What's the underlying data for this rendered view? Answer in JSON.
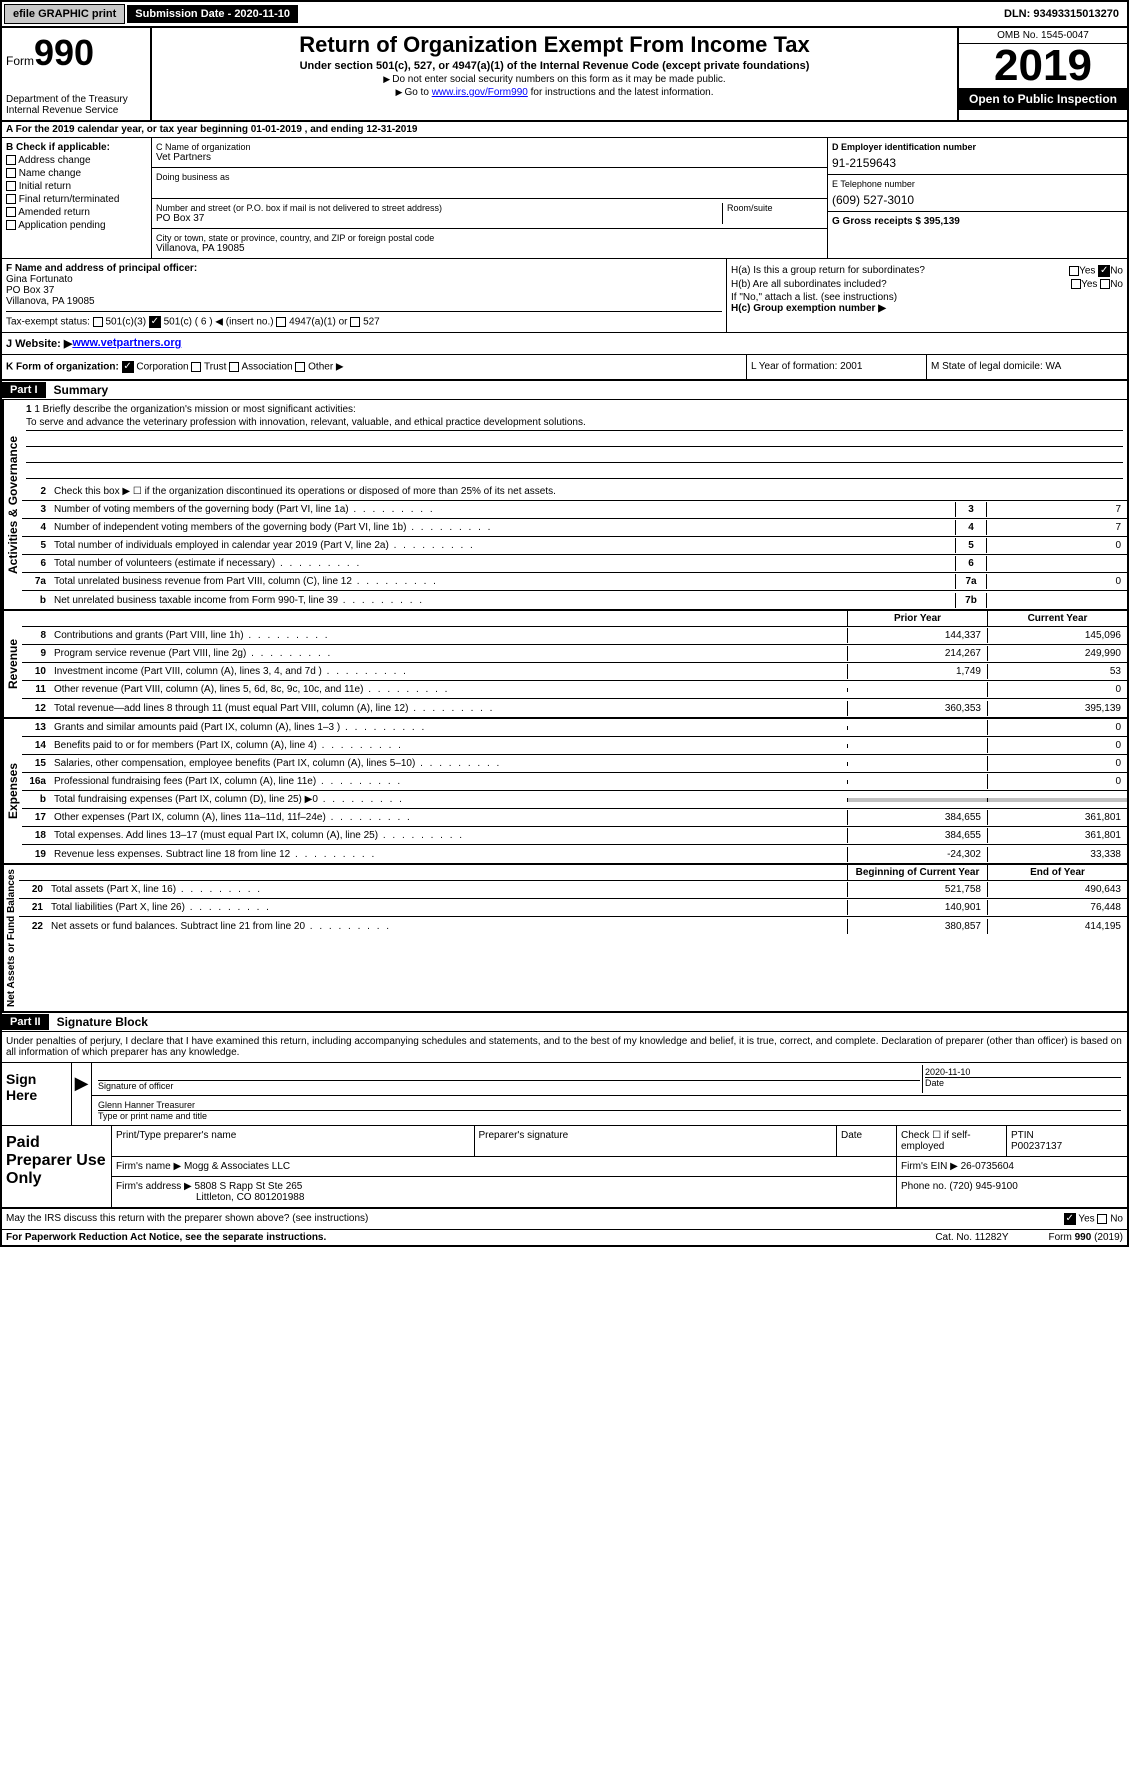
{
  "topbar": {
    "efile": "efile GRAPHIC print",
    "submission_label": "Submission Date - 2020-11-10",
    "dln": "DLN: 93493315013270"
  },
  "header": {
    "form_prefix": "Form",
    "form_num": "990",
    "dept": "Department of the Treasury\nInternal Revenue Service",
    "title": "Return of Organization Exempt From Income Tax",
    "subtitle": "Under section 501(c), 527, or 4947(a)(1) of the Internal Revenue Code (except private foundations)",
    "line2": "Do not enter social security numbers on this form as it may be made public.",
    "line3_pre": "Go to ",
    "line3_link": "www.irs.gov/Form990",
    "line3_post": " for instructions and the latest information.",
    "omb": "OMB No. 1545-0047",
    "year": "2019",
    "inspection": "Open to Public Inspection"
  },
  "rowA": "A  For the 2019 calendar year, or tax year beginning 01-01-2019   , and ending 12-31-2019",
  "colB": {
    "label": "B Check if applicable:",
    "opts": [
      "Address change",
      "Name change",
      "Initial return",
      "Final return/terminated",
      "Amended return",
      "Application pending"
    ]
  },
  "colC": {
    "name_label": "C Name of organization",
    "name": "Vet Partners",
    "dba_label": "Doing business as",
    "addr_label": "Number and street (or P.O. box if mail is not delivered to street address)",
    "room_label": "Room/suite",
    "addr": "PO Box 37",
    "city_label": "City or town, state or province, country, and ZIP or foreign postal code",
    "city": "Villanova, PA  19085"
  },
  "colDE": {
    "d_label": "D Employer identification number",
    "d_val": "91-2159643",
    "e_label": "E Telephone number",
    "e_val": "(609) 527-3010",
    "g_label": "G Gross receipts $ 395,139"
  },
  "principal": {
    "f_label": "F  Name and address of principal officer:",
    "name": "Gina Fortunato",
    "addr1": "PO Box 37",
    "addr2": "Villanova, PA  19085",
    "tax_label": "Tax-exempt status:",
    "c3": "501(c)(3)",
    "c6": "501(c) ( 6 ) ◀ (insert no.)",
    "c4947": "4947(a)(1) or",
    "c527": "527"
  },
  "ha": {
    "ha_label": "H(a)  Is this a group return for subordinates?",
    "hb_label": "H(b)  Are all subordinates included?",
    "hb_note": "If \"No,\" attach a list. (see instructions)",
    "hc_label": "H(c)  Group exemption number ▶"
  },
  "rowJ": {
    "label": "J  Website: ▶ ",
    "url": "www.vetpartners.org"
  },
  "rowK": {
    "label": "K Form of organization:",
    "corp": "Corporation",
    "trust": "Trust",
    "assoc": "Association",
    "other": "Other ▶"
  },
  "rowL": "L Year of formation: 2001",
  "rowM": "M State of legal domicile: WA",
  "part1": {
    "header": "Part I",
    "title": "Summary",
    "vert_gov": "Activities & Governance",
    "vert_rev": "Revenue",
    "vert_exp": "Expenses",
    "vert_net": "Net Assets or Fund Balances",
    "q1_label": "1  Briefly describe the organization's mission or most significant activities:",
    "q1_text": "To serve and advance the veterinary profession with innovation, relevant, valuable, and ethical practice development solutions.",
    "q2": "Check this box ▶ ☐  if the organization discontinued its operations or disposed of more than 25% of its net assets.",
    "lines_gov": [
      {
        "n": "3",
        "t": "Number of voting members of the governing body (Part VI, line 1a)",
        "b": "3",
        "v": "7"
      },
      {
        "n": "4",
        "t": "Number of independent voting members of the governing body (Part VI, line 1b)",
        "b": "4",
        "v": "7"
      },
      {
        "n": "5",
        "t": "Total number of individuals employed in calendar year 2019 (Part V, line 2a)",
        "b": "5",
        "v": "0"
      },
      {
        "n": "6",
        "t": "Total number of volunteers (estimate if necessary)",
        "b": "6",
        "v": ""
      },
      {
        "n": "7a",
        "t": "Total unrelated business revenue from Part VIII, column (C), line 12",
        "b": "7a",
        "v": "0"
      },
      {
        "n": "b",
        "t": "Net unrelated business taxable income from Form 990-T, line 39",
        "b": "7b",
        "v": ""
      }
    ],
    "hdr_prior": "Prior Year",
    "hdr_current": "Current Year",
    "lines_rev": [
      {
        "n": "8",
        "t": "Contributions and grants (Part VIII, line 1h)",
        "p": "144,337",
        "c": "145,096"
      },
      {
        "n": "9",
        "t": "Program service revenue (Part VIII, line 2g)",
        "p": "214,267",
        "c": "249,990"
      },
      {
        "n": "10",
        "t": "Investment income (Part VIII, column (A), lines 3, 4, and 7d )",
        "p": "1,749",
        "c": "53"
      },
      {
        "n": "11",
        "t": "Other revenue (Part VIII, column (A), lines 5, 6d, 8c, 9c, 10c, and 11e)",
        "p": "",
        "c": "0"
      },
      {
        "n": "12",
        "t": "Total revenue—add lines 8 through 11 (must equal Part VIII, column (A), line 12)",
        "p": "360,353",
        "c": "395,139"
      }
    ],
    "lines_exp": [
      {
        "n": "13",
        "t": "Grants and similar amounts paid (Part IX, column (A), lines 1–3 )",
        "p": "",
        "c": "0"
      },
      {
        "n": "14",
        "t": "Benefits paid to or for members (Part IX, column (A), line 4)",
        "p": "",
        "c": "0"
      },
      {
        "n": "15",
        "t": "Salaries, other compensation, employee benefits (Part IX, column (A), lines 5–10)",
        "p": "",
        "c": "0"
      },
      {
        "n": "16a",
        "t": "Professional fundraising fees (Part IX, column (A), line 11e)",
        "p": "",
        "c": "0"
      },
      {
        "n": "b",
        "t": "Total fundraising expenses (Part IX, column (D), line 25) ▶0",
        "p": "GRAY",
        "c": "GRAY"
      },
      {
        "n": "17",
        "t": "Other expenses (Part IX, column (A), lines 11a–11d, 11f–24e)",
        "p": "384,655",
        "c": "361,801"
      },
      {
        "n": "18",
        "t": "Total expenses. Add lines 13–17 (must equal Part IX, column (A), line 25)",
        "p": "384,655",
        "c": "361,801"
      },
      {
        "n": "19",
        "t": "Revenue less expenses. Subtract line 18 from line 12",
        "p": "-24,302",
        "c": "33,338"
      }
    ],
    "hdr_begin": "Beginning of Current Year",
    "hdr_end": "End of Year",
    "lines_net": [
      {
        "n": "20",
        "t": "Total assets (Part X, line 16)",
        "p": "521,758",
        "c": "490,643"
      },
      {
        "n": "21",
        "t": "Total liabilities (Part X, line 26)",
        "p": "140,901",
        "c": "76,448"
      },
      {
        "n": "22",
        "t": "Net assets or fund balances. Subtract line 21 from line 20",
        "p": "380,857",
        "c": "414,195"
      }
    ]
  },
  "part2": {
    "header": "Part II",
    "title": "Signature Block",
    "declare": "Under penalties of perjury, I declare that I have examined this return, including accompanying schedules and statements, and to the best of my knowledge and belief, it is true, correct, and complete. Declaration of preparer (other than officer) is based on all information of which preparer has any knowledge.",
    "sign_here": "Sign Here",
    "sig_officer": "Signature of officer",
    "sig_date": "2020-11-10",
    "date_label": "Date",
    "officer_name": "Glenn Hanner  Treasurer",
    "type_name": "Type or print name and title",
    "paid_label": "Paid Preparer Use Only",
    "prep_name_label": "Print/Type preparer's name",
    "prep_sig_label": "Preparer's signature",
    "prep_date_label": "Date",
    "check_self": "Check ☐ if self-employed",
    "ptin_label": "PTIN",
    "ptin": "P00237137",
    "firm_name_label": "Firm's name    ▶",
    "firm_name": "Mogg & Associates LLC",
    "firm_ein_label": "Firm's EIN ▶",
    "firm_ein": "26-0735604",
    "firm_addr_label": "Firm's address ▶",
    "firm_addr": "5808 S Rapp St Ste 265",
    "firm_city": "Littleton, CO  801201988",
    "phone_label": "Phone no.",
    "phone": "(720) 945-9100",
    "discuss": "May the IRS discuss this return with the preparer shown above? (see instructions)",
    "yes": "Yes",
    "no": "No"
  },
  "footer": {
    "paperwork": "For Paperwork Reduction Act Notice, see the separate instructions.",
    "cat": "Cat. No. 11282Y",
    "form": "Form 990 (2019)"
  }
}
